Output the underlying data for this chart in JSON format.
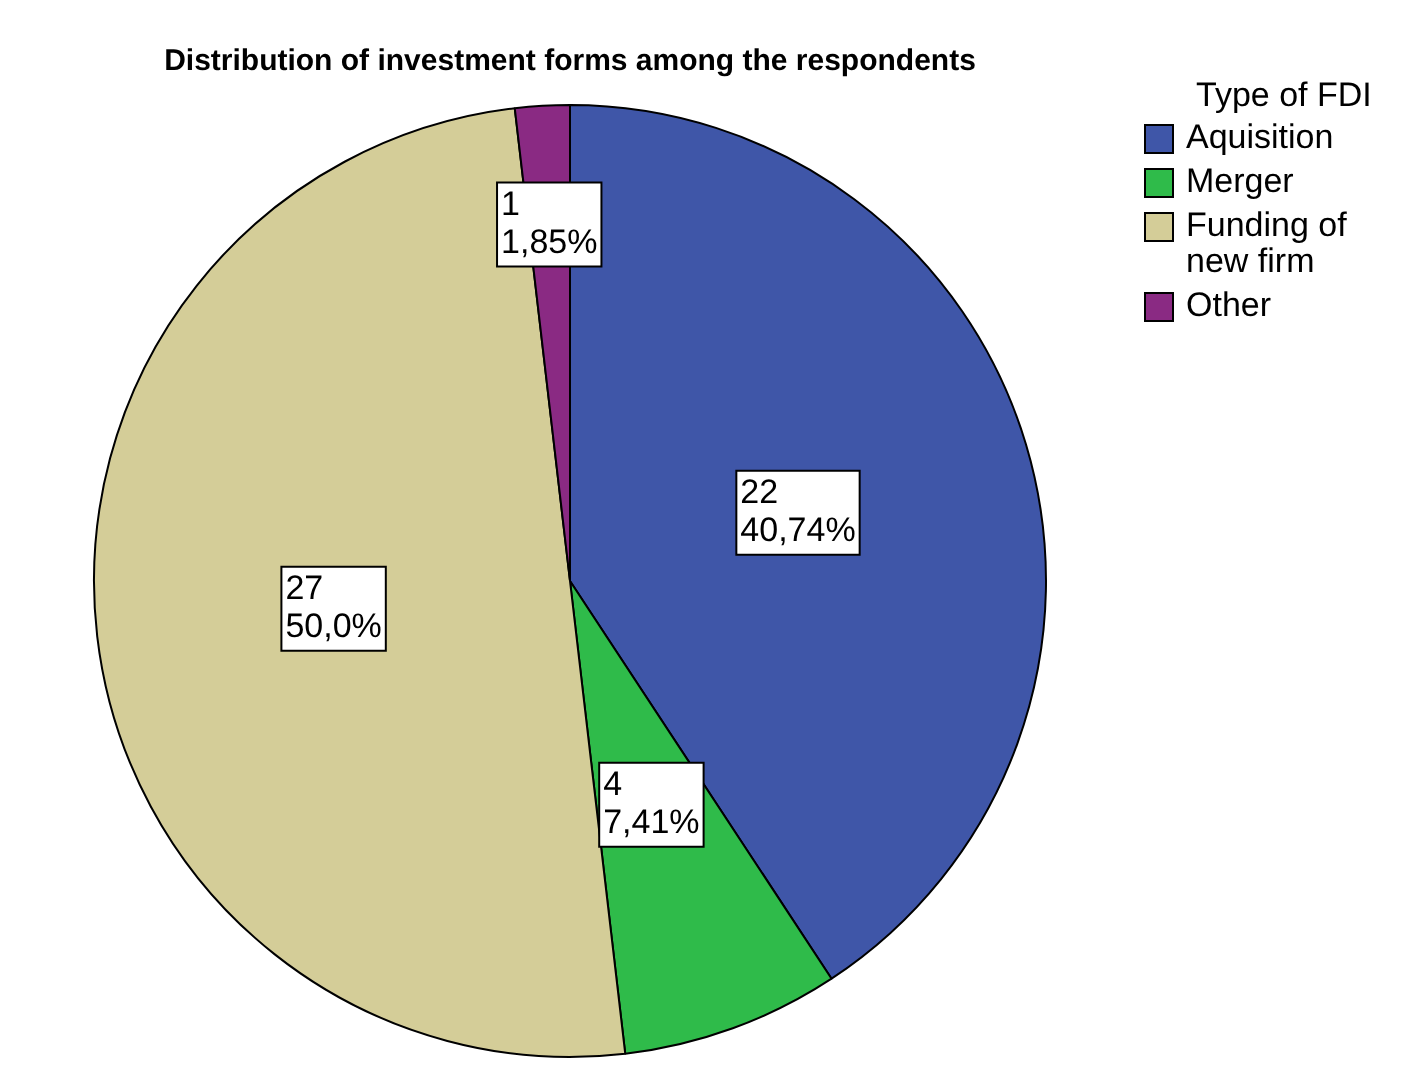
{
  "chart_data": {
    "type": "pie",
    "title": "Distribution of investment forms among the respondents",
    "legend_title": "Type of FDI",
    "legend": "top right",
    "categories": [
      "Aquisition",
      "Merger",
      "Funding of new firm",
      "Other"
    ],
    "values": [
      22,
      4,
      27,
      1
    ],
    "colors": [
      "#3f56a8",
      "#2fbb4a",
      "#d4cd98",
      "#8a2a83"
    ],
    "value_labels": [
      "22\n40,74%",
      "4\n7,41%",
      "27\n50,0%",
      "1\n1,85%"
    ]
  }
}
